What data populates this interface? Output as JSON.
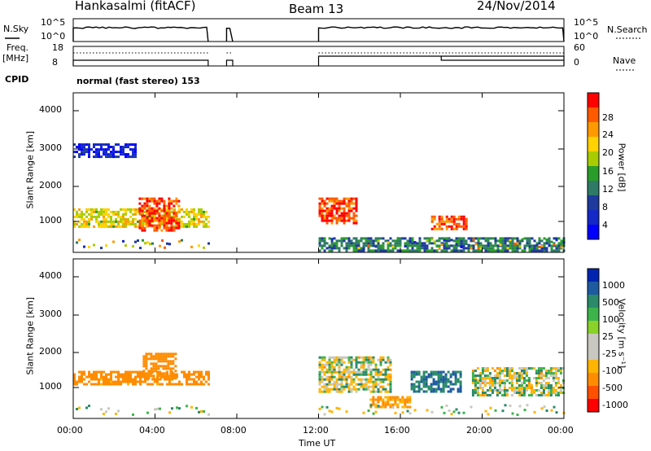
{
  "header": {
    "station": "Hankasalmi (fitACF)",
    "beam": "Beam 13",
    "date": "24/Nov/2014"
  },
  "strips": {
    "nsky_label": "N.Sky",
    "nsky_ticks": [
      "10^5",
      "10^0"
    ],
    "nsearch_label": "N.Search",
    "nsearch_ticks": [
      "10^5",
      "10^0"
    ],
    "freq_label_1": "Freq.",
    "freq_label_2": "[MHz]",
    "freq_ticks": [
      "18",
      "8"
    ],
    "nave_label": "Nave",
    "nave_ticks": [
      "60",
      "0"
    ],
    "cpid_label": "CPID",
    "cpid_value": "normal (fast stereo) 153"
  },
  "x_axis": {
    "label": "Time UT",
    "ticks": [
      "00:00",
      "04:00",
      "08:00",
      "12:00",
      "16:00",
      "20:00",
      "00:00"
    ]
  },
  "panels": {
    "ylabel": "Slant Range [km]",
    "yticks": [
      "4000",
      "3000",
      "2000",
      "1000"
    ]
  },
  "power_scale": {
    "label": "Power [dB]",
    "ticks": [
      "28",
      "24",
      "20",
      "16",
      "12",
      "8",
      "4"
    ],
    "colors": [
      "#ff0000",
      "#ff5a00",
      "#ff9900",
      "#ffd200",
      "#a8cc00",
      "#2a9c2a",
      "#2e7a66",
      "#1e3a9c",
      "#1428c8",
      "#0000ff"
    ]
  },
  "velocity_scale": {
    "label": "Velocity [m s⁻¹]",
    "ticks": [
      "1000",
      "500",
      "100",
      "25",
      "-25",
      "-100",
      "-500",
      "-1000"
    ],
    "colors": [
      "#0024b0",
      "#1e5aa0",
      "#2a8a6a",
      "#3cb44b",
      "#8ad22a",
      "#c8c8c0",
      "#c8c8c0",
      "#ffb400",
      "#ff8c00",
      "#ff5000",
      "#ff0000"
    ]
  },
  "chart_data": [
    {
      "type": "heatmap",
      "title": "Power",
      "xlabel": "Time UT",
      "ylabel": "Slant Range [km]",
      "x_range_hours": [
        0,
        24
      ],
      "ylim": [
        180,
        4600
      ],
      "colorbar_label": "Power [dB]",
      "colorbar_ticks": [
        4,
        8,
        12,
        16,
        20,
        24,
        28
      ],
      "data_gaps_hours": [
        [
          6.6,
          7.5
        ],
        [
          7.8,
          12.0
        ]
      ],
      "regions": [
        {
          "t": [
            0.0,
            6.6
          ],
          "range_km": [
            900,
            1400
          ],
          "power_db": 20
        },
        {
          "t": [
            3.2,
            5.2
          ],
          "range_km": [
            800,
            1700
          ],
          "power_db": 28
        },
        {
          "t": [
            0.0,
            3.0
          ],
          "range_km": [
            2800,
            3200
          ],
          "power_db": 6
        },
        {
          "t": [
            12.0,
            13.8
          ],
          "range_km": [
            1000,
            1700
          ],
          "power_db": 28
        },
        {
          "t": [
            17.5,
            19.2
          ],
          "range_km": [
            800,
            1200
          ],
          "power_db": 28
        },
        {
          "t": [
            12.0,
            24.0
          ],
          "range_km": [
            200,
            600
          ],
          "power_db": 12
        }
      ]
    },
    {
      "type": "heatmap",
      "title": "Velocity",
      "xlabel": "Time UT",
      "ylabel": "Slant Range [km]",
      "x_range_hours": [
        0,
        24
      ],
      "ylim": [
        180,
        4600
      ],
      "colorbar_label": "Velocity [m s⁻¹]",
      "colorbar_ticks": [
        1000,
        500,
        100,
        25,
        -25,
        -100,
        -500,
        -1000
      ],
      "data_gaps_hours": [
        [
          6.6,
          7.5
        ],
        [
          7.8,
          12.0
        ]
      ],
      "regions": [
        {
          "t": [
            0.0,
            6.6
          ],
          "range_km": [
            1100,
            1500
          ],
          "velocity_ms": -200
        },
        {
          "t": [
            3.4,
            5.0
          ],
          "range_km": [
            1300,
            2000
          ],
          "velocity_ms": -300
        },
        {
          "t": [
            12.0,
            15.5
          ],
          "range_km": [
            900,
            1900
          ],
          "velocity_ms": 0
        },
        {
          "t": [
            14.5,
            16.5
          ],
          "range_km": [
            500,
            800
          ],
          "velocity_ms": -150
        },
        {
          "t": [
            16.5,
            19.0
          ],
          "range_km": [
            900,
            1500
          ],
          "velocity_ms": 300
        },
        {
          "t": [
            19.5,
            24.0
          ],
          "range_km": [
            800,
            1600
          ],
          "velocity_ms": 0
        }
      ]
    }
  ]
}
